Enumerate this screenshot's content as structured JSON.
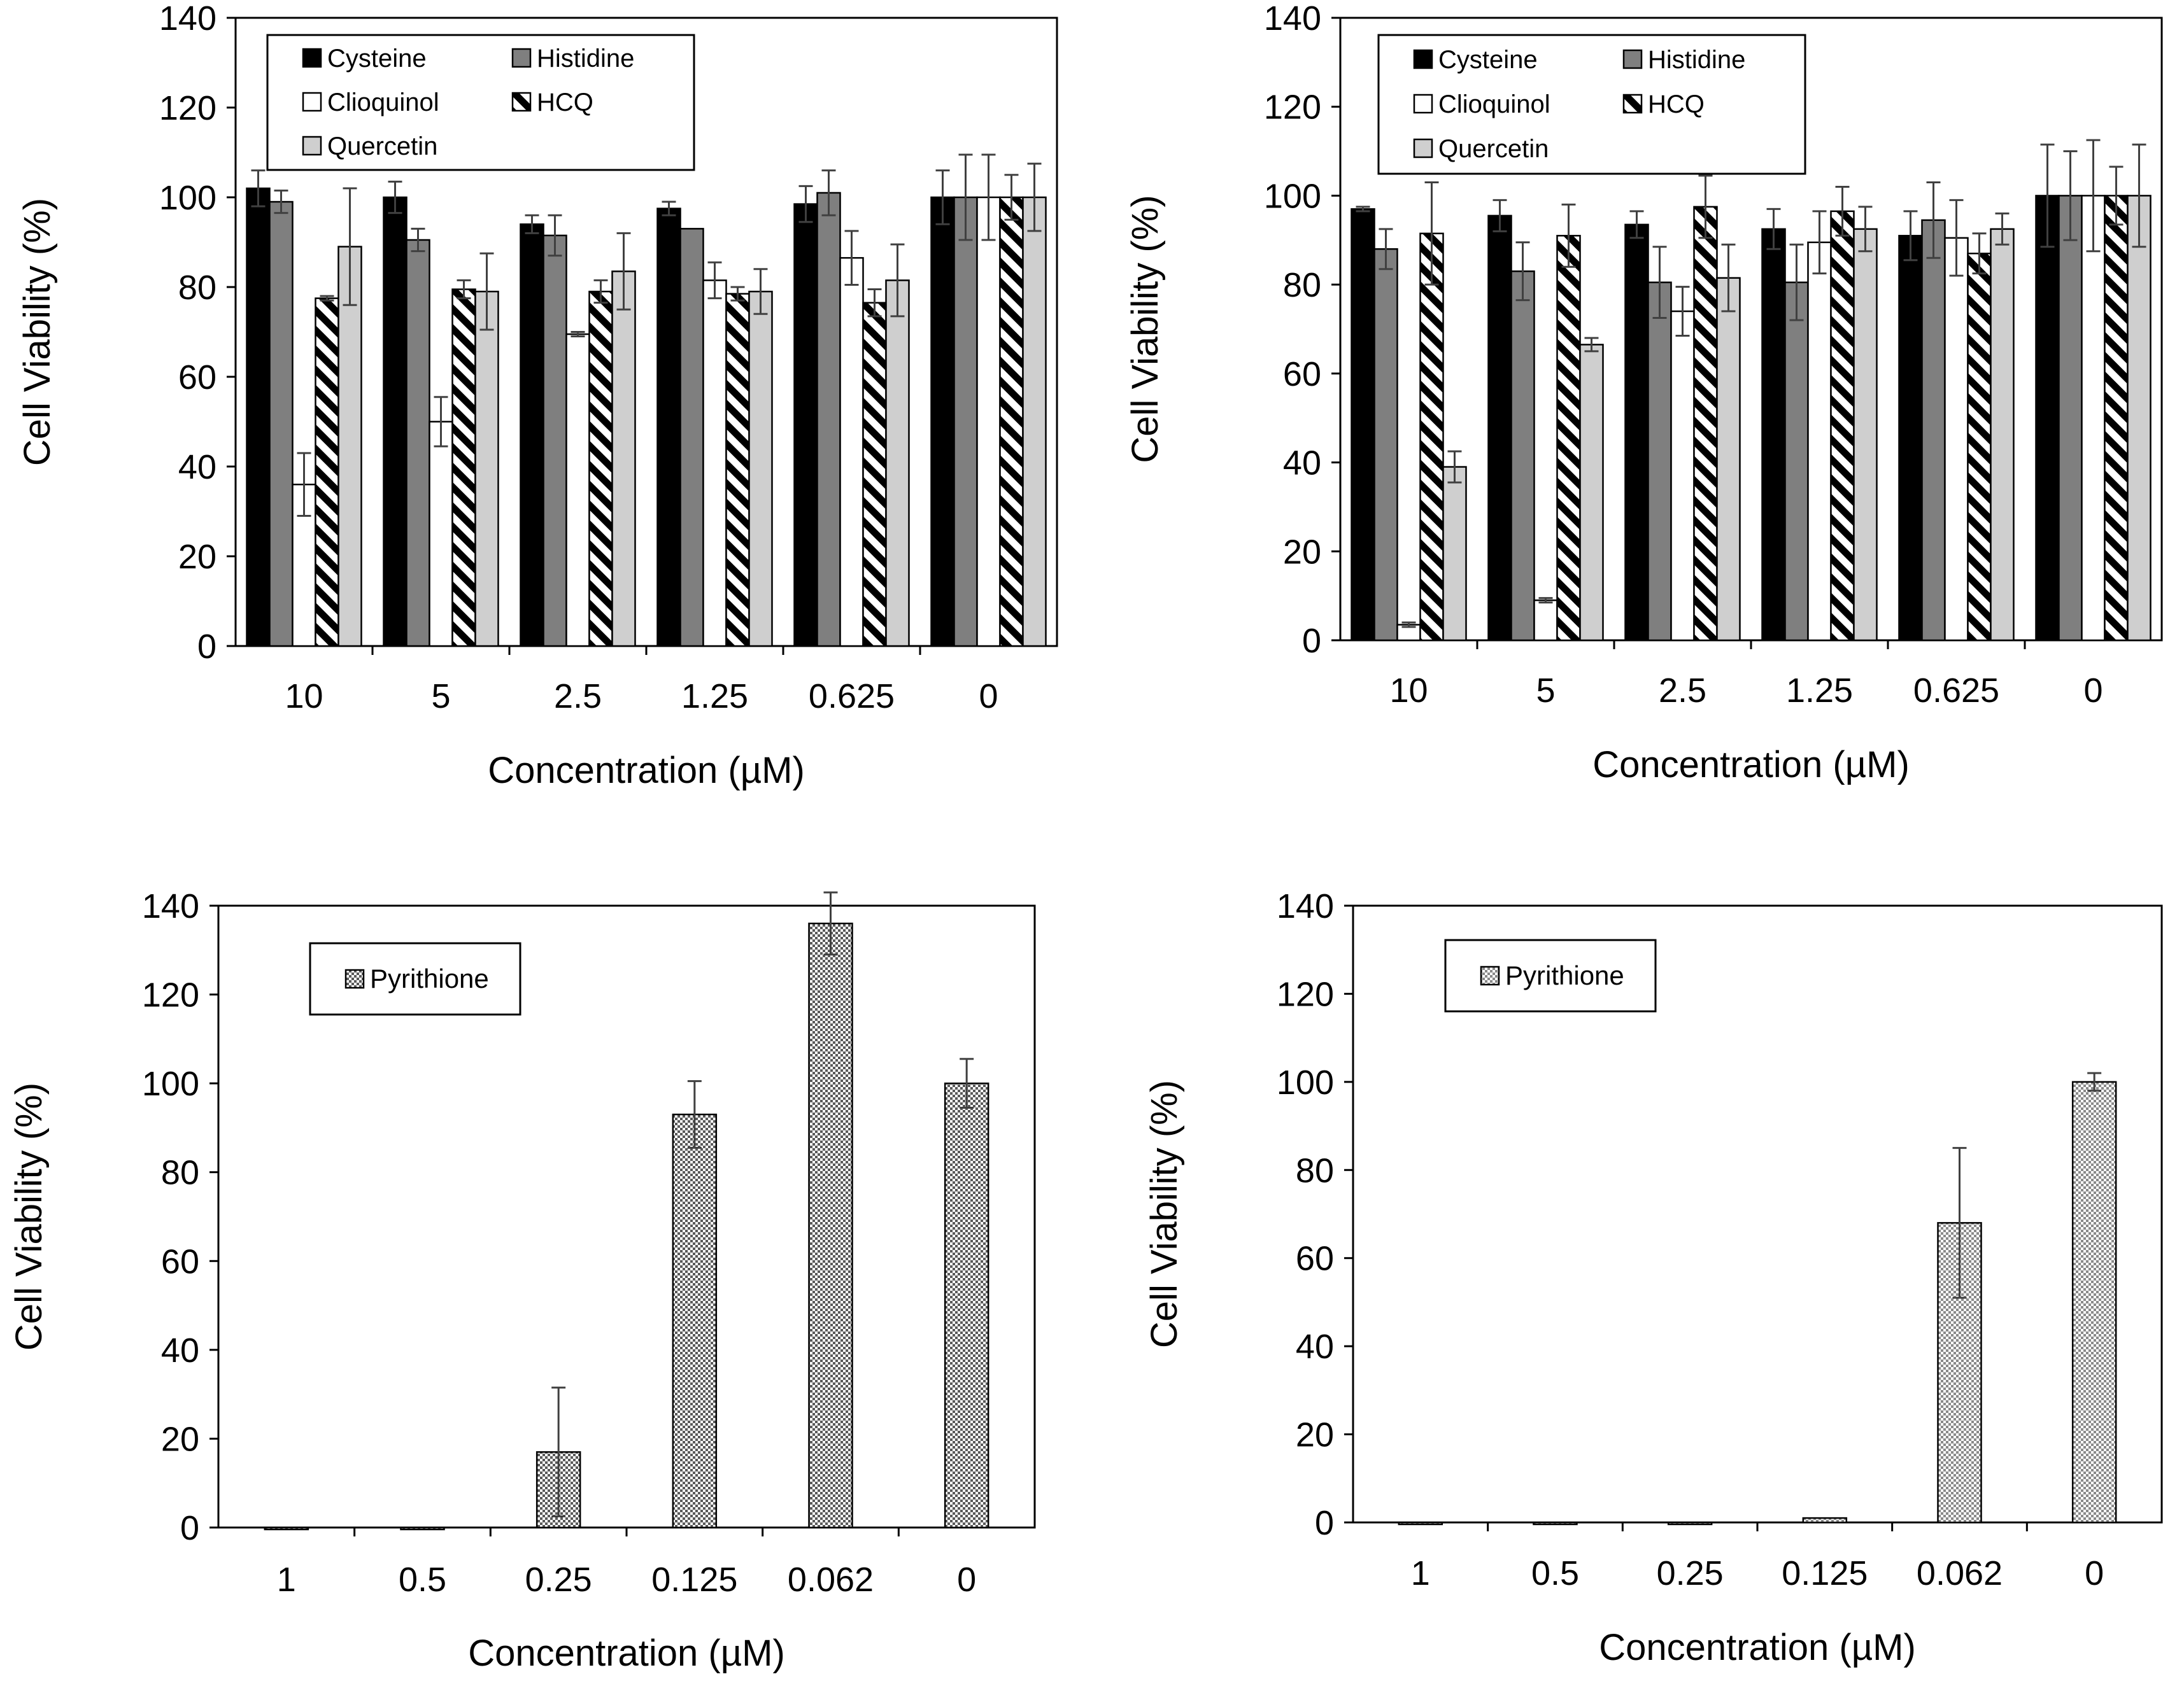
{
  "figure": {
    "y_axis_label": "Cell Viability (%)",
    "x_axis_label": "Concentration (µM)"
  },
  "series_styles": {
    "Cysteine": {
      "fill": "#000000",
      "pattern": "solid"
    },
    "Histidine": {
      "fill": "#7f7f7f",
      "pattern": "solid"
    },
    "Clioquinol": {
      "fill": "#ffffff",
      "pattern": "solid"
    },
    "HCQ": {
      "fill": "#ffffff",
      "pattern": "diagonal-stripes"
    },
    "Quercetin": {
      "fill": "#cfcfcf",
      "pattern": "solid"
    },
    "Pyrithione": {
      "fill": "#9a9a9a",
      "pattern": "checker"
    }
  },
  "chart_data": [
    {
      "id": "top-left",
      "type": "bar",
      "title": "",
      "xlabel": "Concentration (µM)",
      "ylabel": "Cell Viability (%)",
      "ylim": [
        0,
        140
      ],
      "yticks": [
        0,
        20,
        40,
        60,
        80,
        100,
        120,
        140
      ],
      "grid": false,
      "legend_position": "top",
      "categories": [
        "10",
        "5",
        "2.5",
        "1.25",
        "0.625",
        "0"
      ],
      "series": [
        {
          "name": "Cysteine",
          "values": [
            102,
            100,
            94,
            97.5,
            98.5,
            100
          ],
          "errors": [
            4,
            3.5,
            2,
            1.5,
            4,
            6
          ]
        },
        {
          "name": "Histidine",
          "values": [
            99,
            90.5,
            91.5,
            93,
            101,
            100
          ],
          "errors": [
            2.5,
            2.5,
            4.5,
            0,
            5,
            9.5
          ]
        },
        {
          "name": "Clioquinol",
          "values": [
            36,
            50,
            69.5,
            81.5,
            86.5,
            100
          ],
          "errors": [
            7,
            5.5,
            0.5,
            4,
            6,
            9.5
          ]
        },
        {
          "name": "HCQ",
          "values": [
            77.5,
            79.5,
            79,
            78.5,
            76.5,
            100
          ],
          "errors": [
            0.5,
            2,
            2.5,
            1.5,
            3,
            5
          ]
        },
        {
          "name": "Quercetin",
          "values": [
            89,
            79,
            83.5,
            79,
            81.5,
            100
          ],
          "errors": [
            13,
            8.5,
            8.5,
            5,
            8,
            7.5
          ]
        }
      ]
    },
    {
      "id": "top-right",
      "type": "bar",
      "title": "",
      "xlabel": "Concentration (µM)",
      "ylabel": "Cell Viability (%)",
      "ylim": [
        0,
        140
      ],
      "yticks": [
        0,
        20,
        40,
        60,
        80,
        100,
        120,
        140
      ],
      "grid": false,
      "legend_position": "top",
      "categories": [
        "10",
        "5",
        "2.5",
        "1.25",
        "0.625",
        "0"
      ],
      "series": [
        {
          "name": "Cysteine",
          "values": [
            97,
            95.5,
            93.5,
            92.5,
            91,
            100
          ],
          "errors": [
            0.5,
            3.5,
            3,
            4.5,
            5.5,
            11.5
          ]
        },
        {
          "name": "Histidine",
          "values": [
            88,
            83,
            80.5,
            80.5,
            94.5,
            100
          ],
          "errors": [
            4.5,
            6.5,
            8,
            8.5,
            8.5,
            10
          ]
        },
        {
          "name": "Clioquinol",
          "values": [
            3.5,
            9,
            74,
            89.5,
            90.5,
            100
          ],
          "errors": [
            0.5,
            0.5,
            5.5,
            7,
            8.5,
            12.5
          ]
        },
        {
          "name": "HCQ",
          "values": [
            91.5,
            91,
            97.5,
            96.5,
            87,
            100
          ],
          "errors": [
            11.5,
            7,
            7,
            5.5,
            4.5,
            6.5
          ]
        },
        {
          "name": "Quercetin",
          "values": [
            39,
            66.5,
            81.5,
            92.5,
            92.5,
            100
          ],
          "errors": [
            3.5,
            1.5,
            7.5,
            5,
            3.5,
            11.5
          ]
        }
      ]
    },
    {
      "id": "bottom-left",
      "type": "bar",
      "title": "",
      "xlabel": "Concentration (µM)",
      "ylabel": "Cell Viability (%)",
      "ylim": [
        0,
        140
      ],
      "yticks": [
        0,
        20,
        40,
        60,
        80,
        100,
        120,
        140
      ],
      "grid": false,
      "legend_position": "top-left",
      "categories": [
        "1",
        "0.5",
        "0.25",
        "0.125",
        "0.062",
        "0"
      ],
      "series": [
        {
          "name": "Pyrithione",
          "values": [
            0,
            0,
            17,
            93,
            136,
            100
          ],
          "errors": [
            0,
            0,
            14.5,
            7.5,
            7,
            5.5
          ]
        }
      ]
    },
    {
      "id": "bottom-right",
      "type": "bar",
      "title": "",
      "xlabel": "Concentration (µM)",
      "ylabel": "Cell Viability (%)",
      "ylim": [
        0,
        140
      ],
      "yticks": [
        0,
        20,
        40,
        60,
        80,
        100,
        120,
        140
      ],
      "grid": false,
      "legend_position": "top-left",
      "categories": [
        "1",
        "0.5",
        "0.25",
        "0.125",
        "0.062",
        "0"
      ],
      "series": [
        {
          "name": "Pyrithione",
          "values": [
            0,
            0,
            0,
            1,
            68,
            100
          ],
          "errors": [
            0,
            0,
            0,
            0,
            17,
            2
          ]
        }
      ]
    }
  ]
}
